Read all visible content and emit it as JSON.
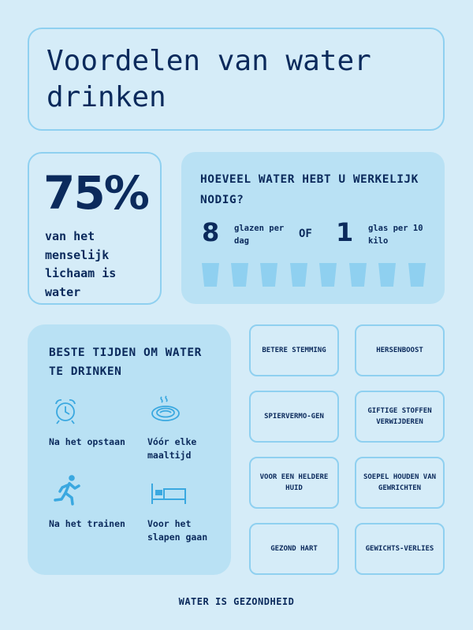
{
  "title": "Voordelen van water drinken",
  "stat": {
    "value": "75%",
    "text": "van het menselijk lichaam is water"
  },
  "need": {
    "title": "HOEVEEL WATER HEBT U WERKELIJK NODIG?",
    "left_number": "8",
    "left_text": "glazen per dag",
    "or": "OF",
    "right_number": "1",
    "right_text": "glas per 10 kilo",
    "glass_count": 8
  },
  "times": {
    "title": "BESTE TIJDEN OM WATER TE DRINKEN",
    "items": [
      {
        "label": "Na het opstaan",
        "icon": "alarm-clock-icon"
      },
      {
        "label": "Vóór elke maaltijd",
        "icon": "meal-plate-icon"
      },
      {
        "label": "Na het trainen",
        "icon": "runner-icon"
      },
      {
        "label": "Voor het slapen gaan",
        "icon": "bed-icon"
      }
    ]
  },
  "benefits": [
    "BETERE STEMMING",
    "HERSENBOOST",
    "SPIERVERMO-GEN",
    "GIFTIGE STOFFEN VERWIJDEREN",
    "VOOR EEN HELDERE HUID",
    "SOEPEL HOUDEN VAN GEWRICHTEN",
    "GEZOND HART",
    "GEWICHTS-VERLIES"
  ],
  "footer": "WATER IS GEZONDHEID",
  "colors": {
    "background": "#d5ecf8",
    "panel": "#b9e1f4",
    "border": "#8fd0f0",
    "text": "#0b2a5c",
    "icon": "#3aa8e0"
  }
}
